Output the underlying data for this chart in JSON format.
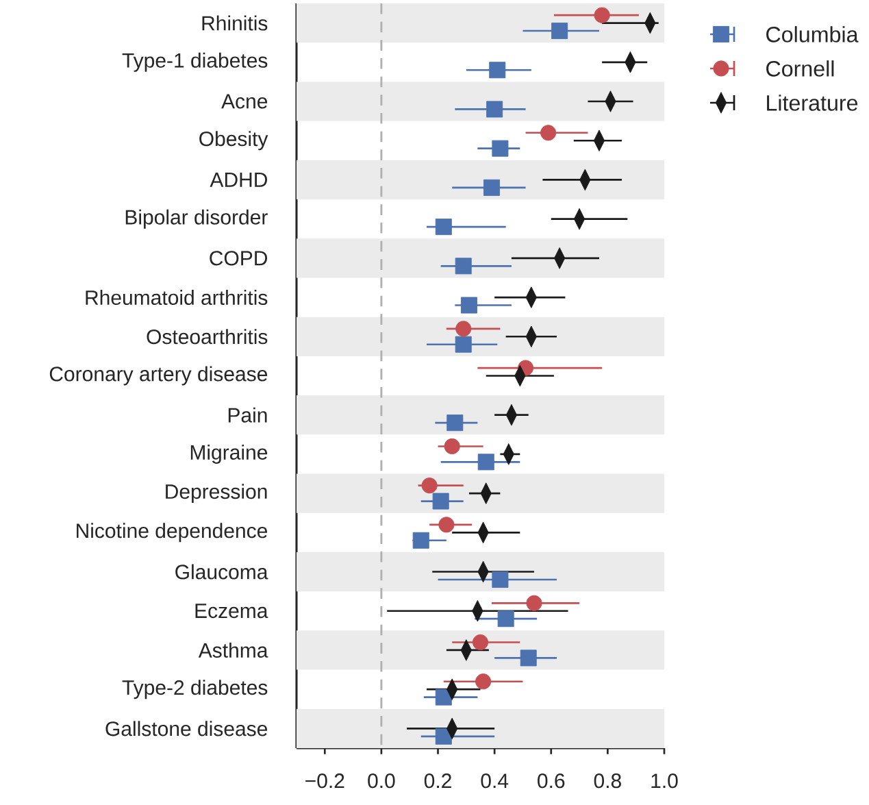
{
  "chart_data": {
    "type": "scatter",
    "orientation": "horizontal",
    "categories": [
      "Rhinitis",
      "Type-1 diabetes",
      "Acne",
      "Obesity",
      "ADHD",
      "Bipolar disorder",
      "COPD",
      "Rheumatoid arthritis",
      "Osteoarthritis",
      "Coronary artery disease",
      "Pain",
      "Migraine",
      "Depression",
      "Nicotine dependence",
      "Glaucoma",
      "Eczema",
      "Asthma",
      "Type-2 diabetes",
      "Gallstone disease"
    ],
    "series": [
      {
        "name": "Columbia",
        "color": "#4c72b0",
        "marker": "square",
        "values": [
          0.63,
          0.41,
          0.4,
          0.42,
          0.39,
          0.22,
          0.29,
          0.31,
          0.29,
          null,
          0.26,
          0.37,
          0.21,
          0.14,
          0.42,
          0.44,
          0.52,
          0.22,
          0.22
        ],
        "errors": [
          [
            0.5,
            0.77
          ],
          [
            0.3,
            0.53
          ],
          [
            0.26,
            0.51
          ],
          [
            0.34,
            0.49
          ],
          [
            0.25,
            0.51
          ],
          [
            0.16,
            0.44
          ],
          [
            0.21,
            0.46
          ],
          [
            0.26,
            0.46
          ],
          [
            0.16,
            0.41
          ],
          null,
          [
            0.19,
            0.34
          ],
          [
            0.21,
            0.49
          ],
          [
            0.14,
            0.29
          ],
          [
            0.11,
            0.23
          ],
          [
            0.2,
            0.62
          ],
          [
            0.33,
            0.55
          ],
          [
            0.4,
            0.62
          ],
          [
            0.15,
            0.34
          ],
          [
            0.14,
            0.4
          ]
        ]
      },
      {
        "name": "Cornell",
        "color": "#c44e52",
        "marker": "circle",
        "values": [
          0.78,
          null,
          null,
          0.59,
          null,
          null,
          null,
          null,
          0.29,
          0.51,
          null,
          0.25,
          0.17,
          0.23,
          null,
          0.54,
          0.35,
          0.36,
          null
        ],
        "errors": [
          [
            0.61,
            0.91
          ],
          null,
          null,
          [
            0.51,
            0.73
          ],
          null,
          null,
          null,
          null,
          [
            0.23,
            0.42
          ],
          [
            0.34,
            0.78
          ],
          null,
          [
            0.2,
            0.36
          ],
          [
            0.13,
            0.29
          ],
          [
            0.17,
            0.32
          ],
          null,
          [
            0.39,
            0.7
          ],
          [
            0.25,
            0.49
          ],
          [
            0.22,
            0.5
          ],
          null
        ]
      },
      {
        "name": "Literature",
        "color": "#1a1a1a",
        "marker": "diamond",
        "values": [
          0.95,
          0.88,
          0.81,
          0.77,
          0.72,
          0.7,
          0.63,
          0.53,
          0.53,
          0.49,
          0.46,
          0.45,
          0.37,
          0.36,
          0.36,
          0.34,
          0.3,
          0.25,
          0.25
        ],
        "errors": [
          [
            0.78,
            0.98
          ],
          [
            0.78,
            0.94
          ],
          [
            0.73,
            0.89
          ],
          [
            0.68,
            0.85
          ],
          [
            0.57,
            0.85
          ],
          [
            0.6,
            0.87
          ],
          [
            0.46,
            0.77
          ],
          [
            0.4,
            0.65
          ],
          [
            0.44,
            0.62
          ],
          [
            0.37,
            0.61
          ],
          [
            0.4,
            0.52
          ],
          [
            0.42,
            0.49
          ],
          [
            0.31,
            0.42
          ],
          [
            0.25,
            0.49
          ],
          [
            0.18,
            0.54
          ],
          [
            0.02,
            0.66
          ],
          [
            0.23,
            0.38
          ],
          [
            0.16,
            0.35
          ],
          [
            0.09,
            0.4
          ]
        ]
      }
    ],
    "xlim": [
      -0.3,
      1.0
    ],
    "xticks": [
      {
        "value": -0.2,
        "label": "−0.2"
      },
      {
        "value": 0.0,
        "label": "0.0"
      },
      {
        "value": 0.2,
        "label": "0.2"
      },
      {
        "value": 0.4,
        "label": "0.4"
      },
      {
        "value": 0.6,
        "label": "0.6"
      },
      {
        "value": 0.8,
        "label": "0.8"
      },
      {
        "value": 1.0,
        "label": "1.0"
      }
    ],
    "ref_lines": [
      {
        "axis": "x",
        "value": 0,
        "color": "#b0b0b0",
        "line_style": "dashed"
      }
    ],
    "bands": [
      {
        "axis": "y",
        "from": "Rhinitis",
        "to": "Rhinitis",
        "color": "#ebebeb"
      },
      {
        "axis": "y",
        "from": "Acne",
        "to": "Acne",
        "color": "#ebebeb"
      },
      {
        "axis": "y",
        "from": "ADHD",
        "to": "ADHD",
        "color": "#ebebeb"
      },
      {
        "axis": "y",
        "from": "COPD",
        "to": "COPD",
        "color": "#ebebeb"
      },
      {
        "axis": "y",
        "from": "Osteoarthritis",
        "to": "Osteoarthritis",
        "color": "#ebebeb"
      },
      {
        "axis": "y",
        "from": "Pain",
        "to": "Pain",
        "color": "#ebebeb"
      },
      {
        "axis": "y",
        "from": "Depression",
        "to": "Depression",
        "color": "#ebebeb"
      },
      {
        "axis": "y",
        "from": "Glaucoma",
        "to": "Glaucoma",
        "color": "#ebebeb"
      },
      {
        "axis": "y",
        "from": "Asthma",
        "to": "Asthma",
        "color": "#ebebeb"
      },
      {
        "axis": "y",
        "from": "Gallstone disease",
        "to": "Gallstone disease",
        "color": "#ebebeb"
      }
    ],
    "grid": false,
    "legend": "top right"
  }
}
